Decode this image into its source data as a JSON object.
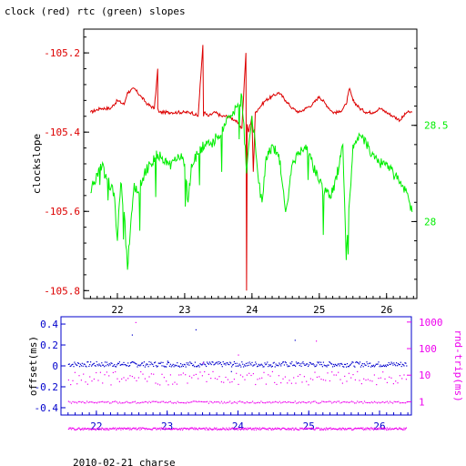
{
  "title": "clock (red) rtc (green) slopes",
  "footer": "2010-02-21 charse",
  "colors": {
    "clock": "#dd0000",
    "rtc": "#00ee00",
    "offset": "#0000cc",
    "rtt": "#ee00ee",
    "axis": "#000000"
  },
  "chart_data": [
    {
      "type": "line",
      "ylabel": "clockslope",
      "xlim": [
        21.5,
        26.45
      ],
      "ylim": [
        -105.82,
        -105.14
      ],
      "y2lim": [
        27.6,
        29.0
      ],
      "x_ticks": [
        "22",
        "23",
        "24",
        "25",
        "26"
      ],
      "y_ticks": [
        "-105.2",
        "-105.4",
        "-105.6",
        "-105.8"
      ],
      "y2_ticks": [
        "28.5",
        "28"
      ],
      "series": [
        {
          "name": "clock",
          "axis": "left",
          "x": [
            21.6,
            21.75,
            21.9,
            22.0,
            22.1,
            22.15,
            22.25,
            22.35,
            22.45,
            22.55,
            22.6,
            22.6,
            22.62,
            22.7,
            22.8,
            22.9,
            23.0,
            23.1,
            23.2,
            23.27,
            23.28,
            23.29,
            23.35,
            23.45,
            23.55,
            23.65,
            23.75,
            23.85,
            23.91,
            23.92,
            23.93,
            23.95,
            24.0,
            24.02,
            24.05,
            24.1,
            24.2,
            24.3,
            24.4,
            24.5,
            24.6,
            24.7,
            24.8,
            24.9,
            25.0,
            25.1,
            25.2,
            25.3,
            25.4,
            25.45,
            25.5,
            25.6,
            25.7,
            25.8,
            25.9,
            26.0,
            26.1,
            26.2,
            26.3,
            26.38
          ],
          "y": [
            -105.35,
            -105.34,
            -105.34,
            -105.32,
            -105.33,
            -105.3,
            -105.29,
            -105.31,
            -105.33,
            -105.34,
            -105.24,
            -105.34,
            -105.35,
            -105.35,
            -105.35,
            -105.35,
            -105.35,
            -105.35,
            -105.36,
            -105.18,
            -105.36,
            -105.35,
            -105.36,
            -105.35,
            -105.36,
            -105.36,
            -105.37,
            -105.39,
            -105.2,
            -105.8,
            -105.38,
            -105.4,
            -105.36,
            -105.5,
            -105.35,
            -105.34,
            -105.32,
            -105.31,
            -105.3,
            -105.32,
            -105.34,
            -105.35,
            -105.34,
            -105.33,
            -105.31,
            -105.33,
            -105.35,
            -105.35,
            -105.33,
            -105.29,
            -105.32,
            -105.34,
            -105.35,
            -105.35,
            -105.34,
            -105.35,
            -105.36,
            -105.37,
            -105.35,
            -105.35
          ]
        },
        {
          "name": "rtc",
          "axis": "right",
          "x": [
            21.6,
            21.7,
            21.75,
            21.85,
            21.95,
            22.0,
            22.05,
            22.1,
            22.15,
            22.2,
            22.25,
            22.3,
            22.4,
            22.5,
            22.6,
            22.7,
            22.8,
            22.9,
            23.0,
            23.05,
            23.1,
            23.2,
            23.3,
            23.4,
            23.5,
            23.6,
            23.7,
            23.8,
            23.85,
            23.92,
            23.97,
            24.0,
            24.05,
            24.1,
            24.15,
            24.2,
            24.3,
            24.4,
            24.5,
            24.6,
            24.7,
            24.8,
            24.9,
            25.0,
            25.1,
            25.2,
            25.3,
            25.35,
            25.4,
            25.5,
            25.6,
            25.7,
            25.8,
            25.9,
            26.0,
            26.1,
            26.2,
            26.3,
            26.38
          ],
          "y": [
            28.15,
            28.25,
            28.3,
            28.22,
            28.15,
            27.9,
            28.2,
            28.05,
            27.75,
            28.0,
            28.2,
            28.15,
            28.25,
            28.3,
            28.35,
            28.3,
            28.3,
            28.35,
            28.3,
            28.1,
            28.3,
            28.35,
            28.4,
            28.4,
            28.45,
            28.5,
            28.55,
            28.6,
            28.65,
            28.25,
            28.45,
            28.55,
            28.4,
            28.2,
            28.1,
            28.3,
            28.4,
            28.35,
            28.05,
            28.3,
            28.35,
            28.4,
            28.3,
            28.2,
            28.15,
            28.15,
            28.3,
            28.4,
            27.8,
            28.4,
            28.45,
            28.4,
            28.35,
            28.3,
            28.3,
            28.25,
            28.2,
            28.15,
            28.05
          ]
        }
      ]
    },
    {
      "type": "scatter",
      "ylabel": "offset(ms)",
      "y2label": "rnd-trip(ms)",
      "xlim": [
        21.5,
        26.45
      ],
      "ylim": [
        -0.47,
        0.47
      ],
      "y2lim_log10": [
        -0.5,
        3.2
      ],
      "y2_scale": "log",
      "x_ticks": [
        "22",
        "23",
        "24",
        "25",
        "26"
      ],
      "y_ticks": [
        "0.4",
        "0.2",
        "0",
        "-0.2",
        "-0.4"
      ],
      "y2_ticks": [
        "1000",
        "100",
        "10",
        "1"
      ],
      "series": [
        {
          "name": "offset",
          "axis": "left",
          "x_range": [
            21.6,
            26.38
          ],
          "y_level": 0.02,
          "y_spread": 0.05
        },
        {
          "name": "rnd-trip",
          "axis": "right",
          "x_range": [
            21.6,
            26.38
          ],
          "levels": [
            0.1,
            1.0,
            8.0
          ]
        }
      ]
    }
  ]
}
